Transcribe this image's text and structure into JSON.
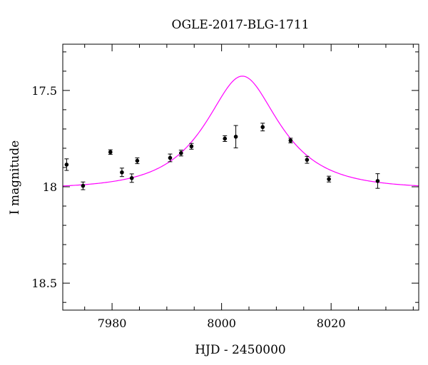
{
  "chart_data": {
    "type": "scatter",
    "title": "OGLE-2017-BLG-1711",
    "xlabel": "HJD - 2450000",
    "ylabel": "I magnitude",
    "xlim": [
      7971,
      8036
    ],
    "ylim": [
      17.26,
      18.64
    ],
    "y_inverted": true,
    "xticks": [
      {
        "value": 7980,
        "label": "7980"
      },
      {
        "value": 8000,
        "label": "8000"
      },
      {
        "value": 8020,
        "label": "8020"
      }
    ],
    "yticks": [
      {
        "value": 17.5,
        "label": "17.5"
      },
      {
        "value": 18.0,
        "label": "18"
      },
      {
        "value": 18.5,
        "label": "18.5"
      }
    ],
    "x_minor_step": 5,
    "y_minor_step": 0.1,
    "grid": false,
    "series": [
      {
        "kind": "points",
        "color": "#000000",
        "points": [
          {
            "x": 7971.7,
            "y": 17.885,
            "err": 0.03
          },
          {
            "x": 7974.7,
            "y": 17.995,
            "err": 0.02
          },
          {
            "x": 7979.7,
            "y": 17.82,
            "err": 0.012
          },
          {
            "x": 7981.8,
            "y": 17.925,
            "err": 0.022
          },
          {
            "x": 7983.6,
            "y": 17.955,
            "err": 0.022
          },
          {
            "x": 7984.6,
            "y": 17.865,
            "err": 0.015
          },
          {
            "x": 7990.6,
            "y": 17.85,
            "err": 0.02
          },
          {
            "x": 7992.6,
            "y": 17.825,
            "err": 0.015
          },
          {
            "x": 7994.5,
            "y": 17.79,
            "err": 0.015
          },
          {
            "x": 8000.6,
            "y": 17.75,
            "err": 0.015
          },
          {
            "x": 8002.6,
            "y": 17.74,
            "err": 0.058
          },
          {
            "x": 8007.5,
            "y": 17.69,
            "err": 0.02
          },
          {
            "x": 8012.6,
            "y": 17.76,
            "err": 0.012
          },
          {
            "x": 8015.6,
            "y": 17.86,
            "err": 0.018
          },
          {
            "x": 8019.6,
            "y": 17.96,
            "err": 0.015
          },
          {
            "x": 8028.5,
            "y": 17.97,
            "err": 0.038
          }
        ]
      },
      {
        "kind": "model",
        "color": "#ff00ff",
        "model": {
          "t0": 8003.8,
          "u0": 0.55,
          "tE": 11.5,
          "baseline": 18.01,
          "blend_frac": 0.7
        }
      }
    ]
  }
}
